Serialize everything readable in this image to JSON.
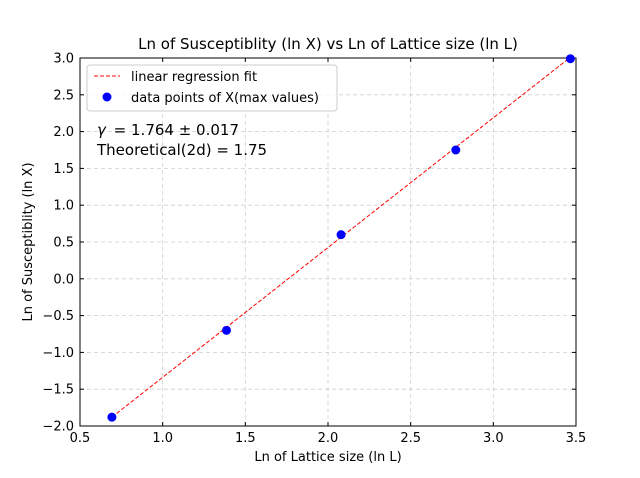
{
  "chart_data": {
    "type": "scatter",
    "title": "Ln of Susceptiblity (ln X) vs Ln of Lattice size (ln L)",
    "xlabel": "Ln of Lattice size (ln L)",
    "ylabel": "Ln of Susceptiblity (ln X)",
    "xlim": [
      0.5,
      3.5
    ],
    "ylim": [
      -2.0,
      3.0
    ],
    "xticks": [
      "0.5",
      "1.0",
      "1.5",
      "2.0",
      "2.5",
      "3.0",
      "3.5"
    ],
    "yticks": [
      "−2.0",
      "−1.5",
      "−1.0",
      "−0.5",
      "0.0",
      "0.5",
      "1.0",
      "1.5",
      "2.0",
      "2.5",
      "3.0"
    ],
    "grid": true,
    "legend_position": "top-left",
    "series": [
      {
        "name": "linear regression fit",
        "kind": "line",
        "color": "#ff0000",
        "style": "dashed",
        "x": [
          0.693,
          3.466
        ],
        "y": [
          -1.88,
          3.01
        ]
      },
      {
        "name": "data points of X(max values)",
        "kind": "scatter",
        "color": "#0000ff",
        "x": [
          0.693,
          1.386,
          2.079,
          2.773,
          3.466
        ],
        "y": [
          -1.88,
          -0.7,
          0.6,
          1.75,
          2.99
        ]
      }
    ],
    "annotations": [
      {
        "gamma_symbol": "γ",
        "gamma_text": "= 1.764 ± 0.017"
      },
      {
        "text": "Theoretical(2d) = 1.75"
      }
    ]
  }
}
